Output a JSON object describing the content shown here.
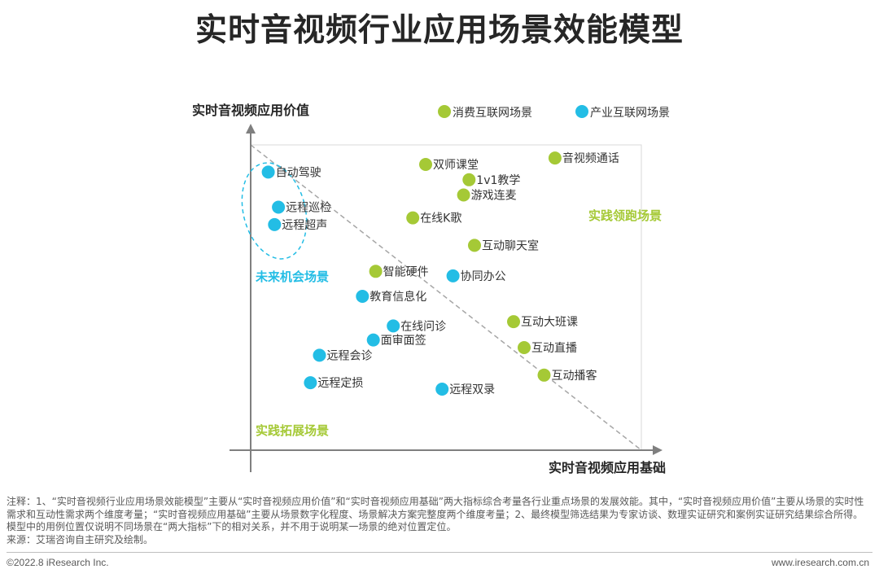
{
  "title": "实时音视频行业应用场景效能模型",
  "chart_data": {
    "type": "scatter",
    "ylabel": "实时音视频应用价值",
    "xlabel": "实时音视频应用基础",
    "legend": [
      {
        "name": "消费互联网场景",
        "color": "#a5c936"
      },
      {
        "name": "产业互联网场景",
        "color": "#23bde5"
      }
    ],
    "legend_position": "top-right",
    "quadrant_labels": [
      {
        "text": "实践领跑场景",
        "color": "#a5c936"
      },
      {
        "text": "未来机会场景",
        "color": "#23bde5"
      },
      {
        "text": "实践拓展场景",
        "color": "#a5c936"
      }
    ],
    "xlim": [
      0,
      100
    ],
    "ylim": [
      0,
      100
    ],
    "points": [
      {
        "label": "自动驾驶",
        "series": "产业互联网场景",
        "x": 4.5,
        "y": 91.1
      },
      {
        "label": "远程巡检",
        "series": "产业互联网场景",
        "x": 7.1,
        "y": 79.6
      },
      {
        "label": "远程超声",
        "series": "产业互联网场景",
        "x": 6.1,
        "y": 73.9
      },
      {
        "label": "双师课堂",
        "series": "消费互联网场景",
        "x": 44.8,
        "y": 93.6
      },
      {
        "label": "1v1教学",
        "series": "消费互联网场景",
        "x": 55.9,
        "y": 88.6
      },
      {
        "label": "音视频通话",
        "series": "消费互联网场景",
        "x": 77.9,
        "y": 95.7
      },
      {
        "label": "游戏连麦",
        "series": "消费互联网场景",
        "x": 54.5,
        "y": 83.6
      },
      {
        "label": "在线K歌",
        "series": "消费互联网场景",
        "x": 41.5,
        "y": 76.1
      },
      {
        "label": "互动聊天室",
        "series": "消费互联网场景",
        "x": 57.3,
        "y": 67.1
      },
      {
        "label": "智能硬件",
        "series": "消费互联网场景",
        "x": 32.0,
        "y": 58.6
      },
      {
        "label": "协同办公",
        "series": "产业互联网场景",
        "x": 51.8,
        "y": 57.1
      },
      {
        "label": "教育信息化",
        "series": "产业互联网场景",
        "x": 28.6,
        "y": 50.4
      },
      {
        "label": "在线问诊",
        "series": "产业互联网场景",
        "x": 36.5,
        "y": 40.7
      },
      {
        "label": "面审面签",
        "series": "产业互联网场景",
        "x": 31.4,
        "y": 36.1
      },
      {
        "label": "远程会诊",
        "series": "产业互联网场景",
        "x": 17.6,
        "y": 31.1
      },
      {
        "label": "远程定损",
        "series": "产业互联网场景",
        "x": 15.3,
        "y": 22.1
      },
      {
        "label": "远程双录",
        "series": "产业互联网场景",
        "x": 49.0,
        "y": 20.0
      },
      {
        "label": "互动大班课",
        "series": "消费互联网场景",
        "x": 67.3,
        "y": 42.1
      },
      {
        "label": "互动直播",
        "series": "消费互联网场景",
        "x": 70.0,
        "y": 33.6
      },
      {
        "label": "互动播客",
        "series": "消费互联网场景",
        "x": 75.1,
        "y": 24.6
      }
    ]
  },
  "note": {
    "line1": "注释：1、“实时音视频行业应用场景效能模型”主要从“实时音视频应用价值”和“实时音视频应用基础”两大指标综合考量各行业重点场景的发展效能。其中，“实时音视频应用价值”主要从场景的实时性需求和互动性需求两个维度考量；“实时音视频应用基础”主要从场景数字化程度、场景解决方案完整度两个维度考量；2、最终模型筛选结果为专家访谈、数理实证研究和案例实证研究结果综合所得。模型中的用例位置仅说明不同场景在“两大指标”下的相对关系，并不用于说明某一场景的绝对位置定位。",
    "line2": "来源：艾瑞咨询自主研究及绘制。"
  },
  "footer": {
    "copyright": "©2022.8 iResearch Inc.",
    "site": "www.iresearch.com.cn"
  }
}
